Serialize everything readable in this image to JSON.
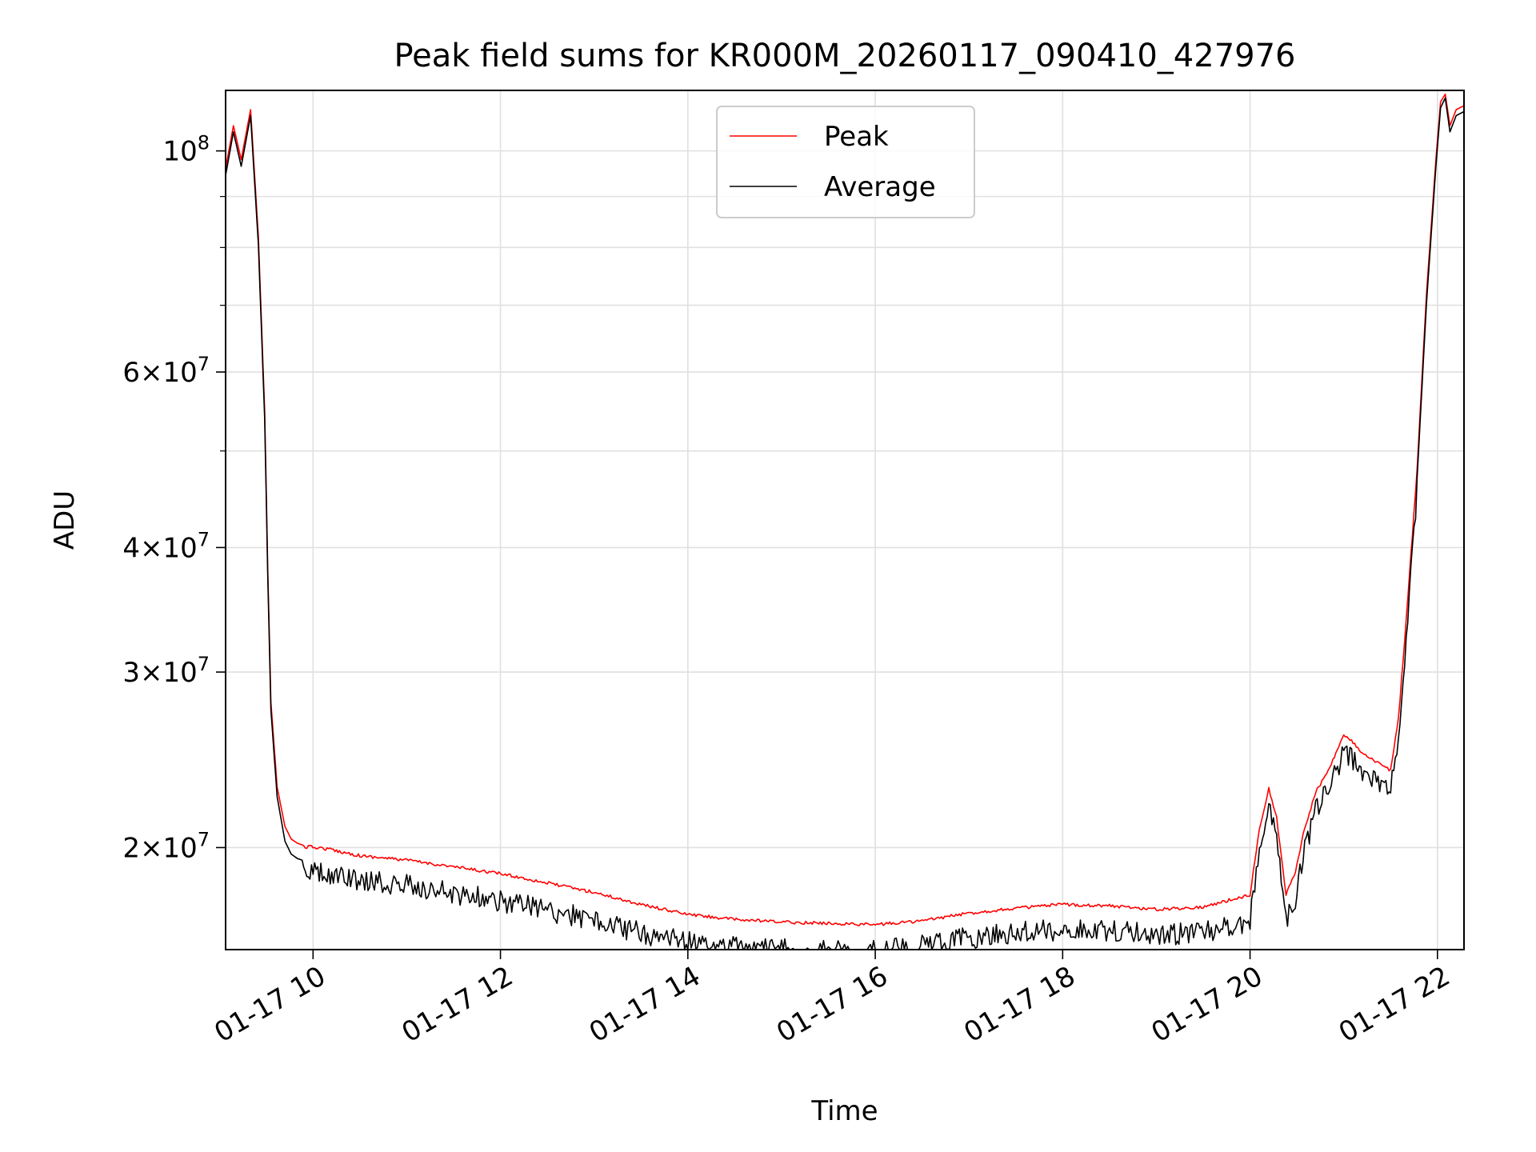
{
  "chart_data": {
    "type": "line",
    "title": "Peak field sums for KR000M_20260117_090410_427976",
    "xlabel": "Time",
    "ylabel": "ADU",
    "y_scale": "log",
    "grid": true,
    "legend_position": "upper center",
    "xlim": [
      "2026-01-17 09:04",
      "2026-01-17 22:17"
    ],
    "ylim": [
      15800000,
      115000000
    ],
    "x_ticks": [
      {
        "value": "2026-01-17 10:00",
        "label": "01-17 10"
      },
      {
        "value": "2026-01-17 12:00",
        "label": "01-17 12"
      },
      {
        "value": "2026-01-17 14:00",
        "label": "01-17 14"
      },
      {
        "value": "2026-01-17 16:00",
        "label": "01-17 16"
      },
      {
        "value": "2026-01-17 18:00",
        "label": "01-17 18"
      },
      {
        "value": "2026-01-17 20:00",
        "label": "01-17 20"
      },
      {
        "value": "2026-01-17 22:00",
        "label": "01-17 22"
      }
    ],
    "y_ticks": [
      {
        "value": 20000000,
        "mantissa": "2",
        "exponent": "7"
      },
      {
        "value": 30000000,
        "mantissa": "3",
        "exponent": "7"
      },
      {
        "value": 40000000,
        "mantissa": "4",
        "exponent": "7"
      },
      {
        "value": 60000000,
        "mantissa": "6",
        "exponent": "7"
      },
      {
        "value": 100000000,
        "mantissa": "",
        "exponent": "8"
      }
    ],
    "y_minor_ticks": [
      50000000,
      70000000,
      80000000,
      90000000
    ],
    "series": [
      {
        "name": "Peak",
        "color": "#ff0000",
        "x": [
          "2026-01-17 09:04",
          "2026-01-17 09:09",
          "2026-01-17 09:14",
          "2026-01-17 09:20",
          "2026-01-17 09:25",
          "2026-01-17 09:29",
          "2026-01-17 09:31",
          "2026-01-17 09:33",
          "2026-01-17 09:37",
          "2026-01-17 09:42",
          "2026-01-17 09:46",
          "2026-01-17 09:50",
          "2026-01-17 09:54",
          "2026-01-17 09:57",
          "2026-01-17 10:00",
          "2026-01-17 10:10",
          "2026-01-17 10:30",
          "2026-01-17 11:00",
          "2026-01-17 11:30",
          "2026-01-17 12:00",
          "2026-01-17 12:30",
          "2026-01-17 13:00",
          "2026-01-17 13:30",
          "2026-01-17 14:00",
          "2026-01-17 14:30",
          "2026-01-17 15:00",
          "2026-01-17 15:30",
          "2026-01-17 16:00",
          "2026-01-17 16:30",
          "2026-01-17 17:00",
          "2026-01-17 17:30",
          "2026-01-17 18:00",
          "2026-01-17 18:30",
          "2026-01-17 19:00",
          "2026-01-17 19:30",
          "2026-01-17 20:00",
          "2026-01-17 20:06",
          "2026-01-17 20:12",
          "2026-01-17 20:17",
          "2026-01-17 20:23",
          "2026-01-17 20:29",
          "2026-01-17 20:35",
          "2026-01-17 20:42",
          "2026-01-17 20:50",
          "2026-01-17 21:00",
          "2026-01-17 21:06",
          "2026-01-17 21:12",
          "2026-01-17 21:20",
          "2026-01-17 21:30",
          "2026-01-17 21:35",
          "2026-01-17 21:40",
          "2026-01-17 21:47",
          "2026-01-17 21:53",
          "2026-01-17 21:59",
          "2026-01-17 22:02",
          "2026-01-17 22:05",
          "2026-01-17 22:08",
          "2026-01-17 22:12",
          "2026-01-17 22:17"
        ],
        "y": [
          96000000,
          106000000,
          98000000,
          110000000,
          82000000,
          55000000,
          38000000,
          28000000,
          23000000,
          21000000,
          20400000,
          20200000,
          20100000,
          20100000,
          20100000,
          20000000,
          19700000,
          19500000,
          19200000,
          18900000,
          18500000,
          18100000,
          17600000,
          17200000,
          17000000,
          16900000,
          16850000,
          16800000,
          16950000,
          17250000,
          17450000,
          17600000,
          17550000,
          17400000,
          17500000,
          18000000,
          21000000,
          23000000,
          21500000,
          18000000,
          19000000,
          21000000,
          22800000,
          24000000,
          26000000,
          25600000,
          24900000,
          24500000,
          24000000,
          27000000,
          34000000,
          48000000,
          72000000,
          98000000,
          112000000,
          114000000,
          106000000,
          110000000,
          111000000
        ]
      },
      {
        "name": "Average",
        "color": "#000000",
        "x": [
          "2026-01-17 09:04",
          "2026-01-17 09:09",
          "2026-01-17 09:14",
          "2026-01-17 09:20",
          "2026-01-17 09:25",
          "2026-01-17 09:29",
          "2026-01-17 09:31",
          "2026-01-17 09:33",
          "2026-01-17 09:37",
          "2026-01-17 09:42",
          "2026-01-17 09:46",
          "2026-01-17 09:50",
          "2026-01-17 09:54",
          "2026-01-17 09:57",
          "2026-01-17 10:00",
          "2026-01-17 10:10",
          "2026-01-17 10:30",
          "2026-01-17 11:00",
          "2026-01-17 11:30",
          "2026-01-17 12:00",
          "2026-01-17 12:30",
          "2026-01-17 13:00",
          "2026-01-17 13:30",
          "2026-01-17 14:00",
          "2026-01-17 14:30",
          "2026-01-17 15:00",
          "2026-01-17 15:30",
          "2026-01-17 16:00",
          "2026-01-17 16:30",
          "2026-01-17 17:00",
          "2026-01-17 17:30",
          "2026-01-17 18:00",
          "2026-01-17 18:30",
          "2026-01-17 19:00",
          "2026-01-17 19:30",
          "2026-01-17 20:00",
          "2026-01-17 20:06",
          "2026-01-17 20:12",
          "2026-01-17 20:17",
          "2026-01-17 20:23",
          "2026-01-17 20:29",
          "2026-01-17 20:35",
          "2026-01-17 20:42",
          "2026-01-17 20:50",
          "2026-01-17 21:00",
          "2026-01-17 21:06",
          "2026-01-17 21:12",
          "2026-01-17 21:20",
          "2026-01-17 21:30",
          "2026-01-17 21:35",
          "2026-01-17 21:40",
          "2026-01-17 21:47",
          "2026-01-17 21:53",
          "2026-01-17 21:59",
          "2026-01-17 22:02",
          "2026-01-17 22:05",
          "2026-01-17 22:08",
          "2026-01-17 22:12",
          "2026-01-17 22:17"
        ],
        "y": [
          94500000,
          104500000,
          96500000,
          108500000,
          80500000,
          54000000,
          37400000,
          27500000,
          22500000,
          20300000,
          19700000,
          19500000,
          19400000,
          19400000,
          19350000,
          19250000,
          19000000,
          18800000,
          18450000,
          18150000,
          17750000,
          17350000,
          16850000,
          16500000,
          16300000,
          16200000,
          16150000,
          16150000,
          16350000,
          16650000,
          16850000,
          17000000,
          16950000,
          16800000,
          16850000,
          17300000,
          20500000,
          22600000,
          20800000,
          17400000,
          18300000,
          20400000,
          22300000,
          23500000,
          25500000,
          25100000,
          24400000,
          24000000,
          23500000,
          26400000,
          33300000,
          47000000,
          70500000,
          96500000,
          110500000,
          113000000,
          104500000,
          108500000,
          109500000
        ]
      }
    ]
  }
}
